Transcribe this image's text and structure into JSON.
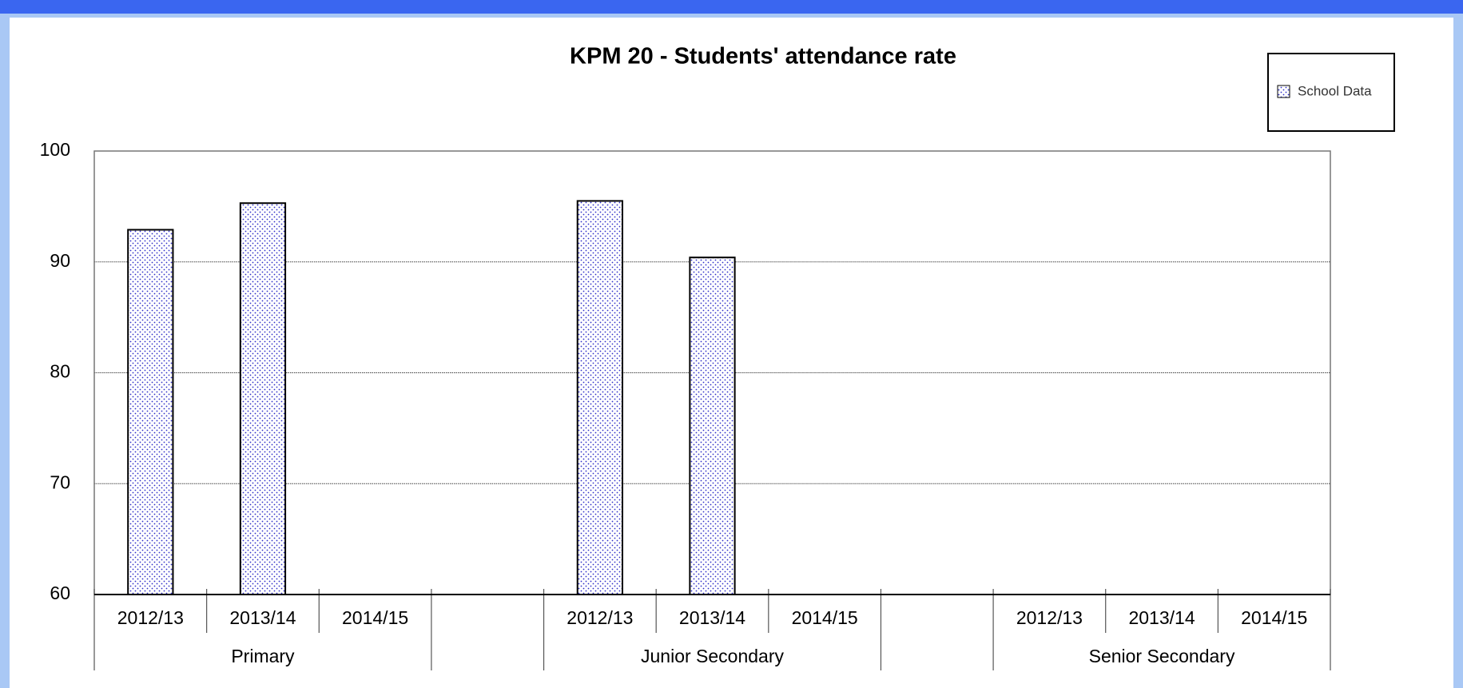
{
  "chart_data": {
    "type": "bar",
    "title": "KPM 20 - Students' attendance rate",
    "categories": [
      "2012/13",
      "2013/14",
      "2014/15",
      null,
      "2012/13",
      "2013/14",
      "2014/15",
      null,
      "2012/13",
      "2013/14",
      "2014/15"
    ],
    "groups": [
      "Primary",
      "Junior Secondary",
      "Senior Secondary"
    ],
    "series": [
      {
        "name": "School Data",
        "color": "#3030c8",
        "values": [
          92.9,
          95.3,
          null,
          null,
          95.5,
          90.4,
          null,
          null,
          null,
          null,
          null
        ]
      }
    ],
    "ylim": [
      60,
      100
    ],
    "yticks": [
      60,
      70,
      80,
      90,
      100
    ],
    "grid": true,
    "legend": "top-right"
  }
}
